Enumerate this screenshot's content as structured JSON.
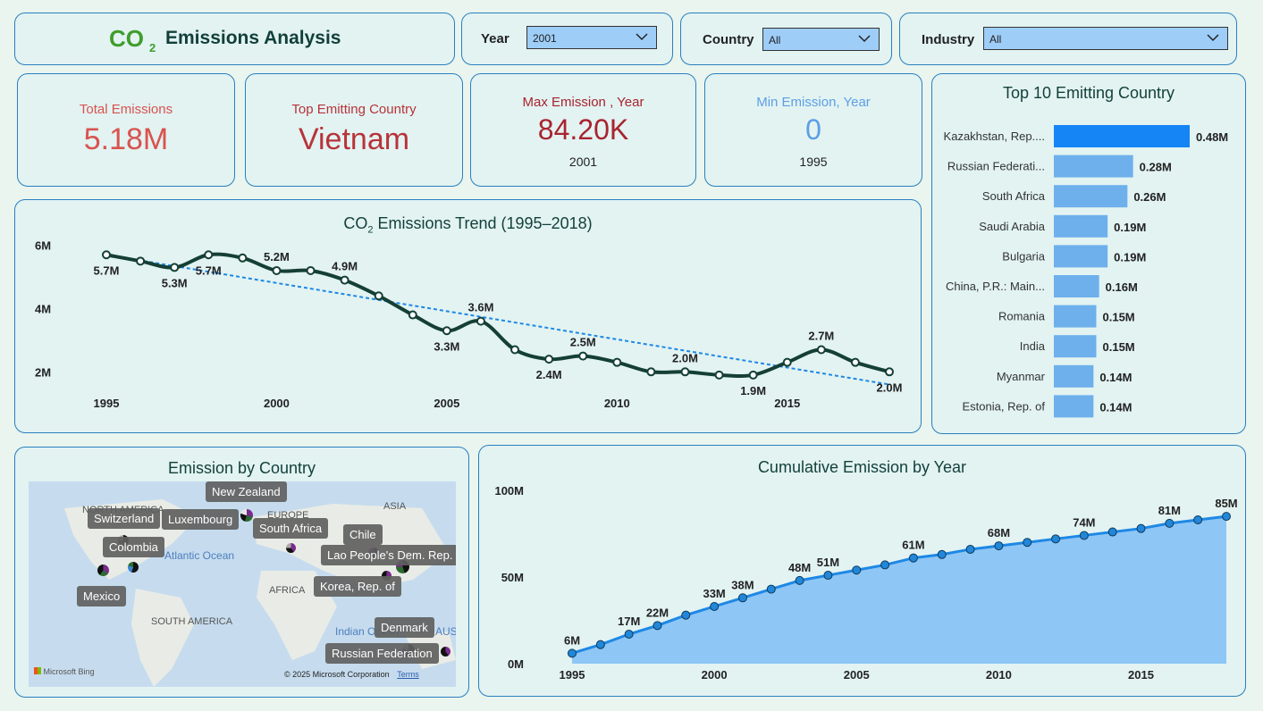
{
  "header": {
    "title": "Emissions Analysis",
    "logo_text": "CO",
    "logo_sub": "2"
  },
  "filters": {
    "year": {
      "label": "Year",
      "value": "2001"
    },
    "country": {
      "label": "Country",
      "value": "All"
    },
    "industry": {
      "label": "Industry",
      "value": "All"
    }
  },
  "kpis": {
    "total": {
      "label": "Total Emissions",
      "value": "5.18M",
      "color": "#d9534f"
    },
    "top_country": {
      "label": "Top Emitting Country",
      "value": "Vietnam",
      "color": "#b8333a"
    },
    "max": {
      "label": "Max Emission , Year",
      "value": "84.20K",
      "sub": "2001",
      "color": "#a9232e"
    },
    "min": {
      "label": "Min Emission, Year",
      "value": "0",
      "sub": "1995",
      "color": "#5d9ee3"
    }
  },
  "trend": {
    "title_prefix": "CO",
    "title_sub": "2",
    "title_suffix": " Emissions Trend (1995–2018)"
  },
  "top10": {
    "title": "Top 10 Emitting Country"
  },
  "map": {
    "title": "Emission by Country",
    "regions": [
      "NORTH AMERICA",
      "EUROPE",
      "ASIA",
      "AFRICA",
      "SOUTH AMERICA"
    ],
    "oceans": [
      "Atlantic Ocean",
      "Indian Ocean",
      "AUSTR"
    ],
    "labels": [
      "New Zealand",
      "Switzerland",
      "Luxembourg",
      "South Africa",
      "Chile",
      "Colombia",
      "Lao People's Dem. Rep.",
      "Korea, Rep. of",
      "Mexico",
      "Denmark",
      "Russian Federation"
    ],
    "attribution": "© 2025 Microsoft Corporation",
    "terms": "Terms",
    "bing": "Microsoft Bing"
  },
  "cumulative": {
    "title": "Cumulative Emission by Year"
  },
  "chart_data": [
    {
      "type": "line",
      "title": "CO₂ Emissions Trend (1995–2018)",
      "x": [
        1995,
        1996,
        1997,
        1998,
        1999,
        2000,
        2001,
        2002,
        2003,
        2004,
        2005,
        2006,
        2007,
        2008,
        2009,
        2010,
        2011,
        2012,
        2013,
        2014,
        2015,
        2016,
        2017,
        2018
      ],
      "series": [
        {
          "name": "Emissions (M)",
          "values": [
            5.7,
            5.5,
            5.3,
            5.7,
            5.6,
            5.2,
            5.2,
            4.9,
            4.4,
            3.8,
            3.3,
            3.6,
            2.7,
            2.4,
            2.5,
            2.3,
            2.0,
            2.0,
            1.9,
            1.9,
            2.3,
            2.7,
            2.3,
            2.0
          ]
        }
      ],
      "trendline": {
        "start": 5.7,
        "end": 1.6
      },
      "data_labels": [
        {
          "x": 1995,
          "label": "5.7M",
          "pos": "below"
        },
        {
          "x": 1997,
          "label": "5.3M",
          "pos": "below"
        },
        {
          "x": 1998,
          "label": "5.7M",
          "pos": "below"
        },
        {
          "x": 2000,
          "label": "5.2M",
          "pos": "above"
        },
        {
          "x": 2002,
          "label": "4.9M",
          "pos": "above"
        },
        {
          "x": 2005,
          "label": "3.3M",
          "pos": "below"
        },
        {
          "x": 2006,
          "label": "3.6M",
          "pos": "above"
        },
        {
          "x": 2008,
          "label": "2.4M",
          "pos": "below"
        },
        {
          "x": 2009,
          "label": "2.5M",
          "pos": "above"
        },
        {
          "x": 2012,
          "label": "2.0M",
          "pos": "above"
        },
        {
          "x": 2014,
          "label": "1.9M",
          "pos": "below"
        },
        {
          "x": 2016,
          "label": "2.7M",
          "pos": "above"
        },
        {
          "x": 2018,
          "label": "2.0M",
          "pos": "below"
        }
      ],
      "y_ticks": [
        "2M",
        "4M",
        "6M"
      ],
      "y_tick_values": [
        2,
        4,
        6
      ],
      "x_ticks": [
        "1995",
        "2000",
        "2005",
        "2010",
        "2015"
      ],
      "ylim": [
        1.5,
        6.3
      ],
      "colors": {
        "line": "#143f35",
        "trend": "#1e88e5"
      }
    },
    {
      "type": "bar",
      "title": "Top 10 Emitting Country",
      "categories": [
        "Kazakhstan, Rep....",
        "Russian Federati...",
        "South Africa",
        "Saudi Arabia",
        "Bulgaria",
        "China, P.R.: Main...",
        "Romania",
        "India",
        "Myanmar",
        "Estonia, Rep. of"
      ],
      "values": [
        0.48,
        0.28,
        0.26,
        0.19,
        0.19,
        0.16,
        0.15,
        0.15,
        0.14,
        0.14
      ],
      "labels": [
        "0.48M",
        "0.28M",
        "0.26M",
        "0.19M",
        "0.19M",
        "0.16M",
        "0.15M",
        "0.15M",
        "0.14M",
        "0.14M"
      ],
      "xlim": [
        0,
        0.48
      ],
      "colors": {
        "top": "#1585f5",
        "rest": "#6eb0ec"
      }
    },
    {
      "type": "area",
      "title": "Cumulative Emission by Year",
      "x": [
        1995,
        1996,
        1997,
        1998,
        1999,
        2000,
        2001,
        2002,
        2003,
        2004,
        2005,
        2006,
        2007,
        2008,
        2009,
        2010,
        2011,
        2012,
        2013,
        2014,
        2015,
        2016,
        2017,
        2018
      ],
      "values": [
        6,
        11,
        17,
        22,
        28,
        33,
        38,
        43,
        48,
        51,
        54,
        57,
        61,
        63,
        66,
        68,
        70,
        72,
        74,
        76,
        78,
        81,
        83,
        85
      ],
      "data_labels": [
        {
          "x": 1995,
          "label": "6M"
        },
        {
          "x": 1997,
          "label": "17M"
        },
        {
          "x": 1998,
          "label": "22M"
        },
        {
          "x": 2000,
          "label": "33M"
        },
        {
          "x": 2001,
          "label": "38M"
        },
        {
          "x": 2003,
          "label": "48M"
        },
        {
          "x": 2004,
          "label": "51M"
        },
        {
          "x": 2007,
          "label": "61M"
        },
        {
          "x": 2010,
          "label": "68M"
        },
        {
          "x": 2013,
          "label": "74M"
        },
        {
          "x": 2016,
          "label": "81M"
        },
        {
          "x": 2018,
          "label": "85M"
        }
      ],
      "y_ticks": [
        "0M",
        "50M",
        "100M"
      ],
      "y_tick_values": [
        0,
        50,
        100
      ],
      "x_ticks": [
        "1995",
        "2000",
        "2005",
        "2010",
        "2015"
      ],
      "ylim": [
        0,
        100
      ],
      "colors": {
        "line": "#1e88e5",
        "fill": "#8ec6f5",
        "marker": "#2187d9"
      }
    }
  ]
}
